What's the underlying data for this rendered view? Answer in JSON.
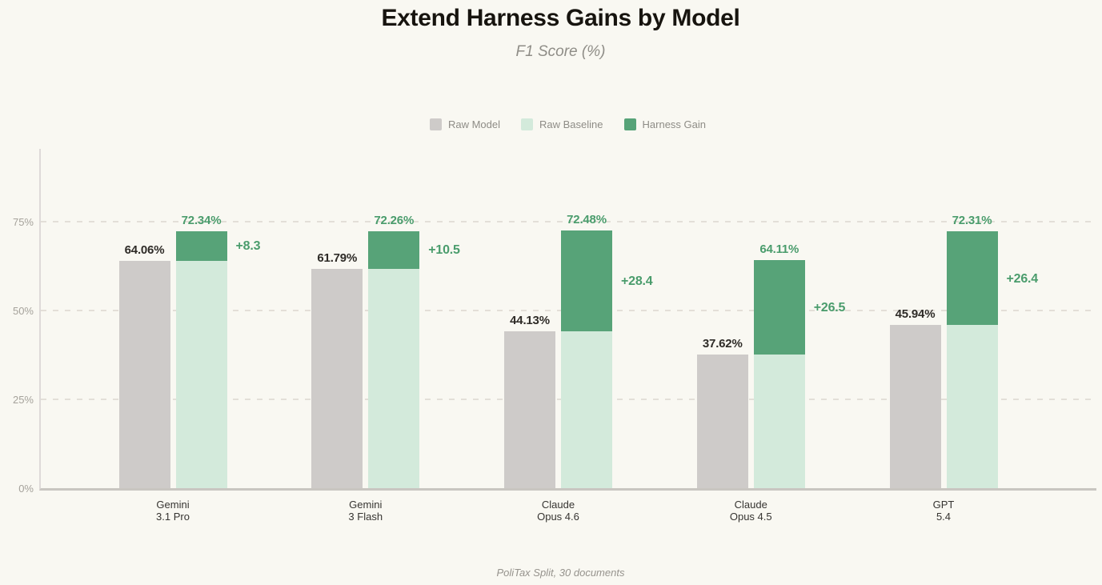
{
  "header": {
    "title": "Extend Harness Gains by Model",
    "subtitle": "F1 Score (%)"
  },
  "footer": {
    "caption": "PoliTax Split, 30 documents"
  },
  "colors": {
    "background": "#f9f8f2",
    "raw_model": "#cecbc9",
    "raw_baseline": "#d3eadb",
    "harness_gain": "#57a378",
    "gain_text": "#4a9c6c",
    "gridline": "#e3dfd8"
  },
  "chart_data": {
    "type": "bar",
    "title": "Extend Harness Gains by Model",
    "subtitle": "F1 Score (%)",
    "caption": "PoliTax Split, 30 documents",
    "ylim": [
      0,
      95.5
    ],
    "grid": "dashed horizontal",
    "legend_position": "top",
    "y_ticks": [
      {
        "value": 0,
        "label": "0%"
      },
      {
        "value": 25,
        "label": "25%"
      },
      {
        "value": 50,
        "label": "50%"
      },
      {
        "value": 75,
        "label": "75%"
      }
    ],
    "categories": [
      [
        "Gemini",
        "3.1 Pro"
      ],
      [
        "Gemini",
        "3 Flash"
      ],
      [
        "Claude",
        "Opus 4.6"
      ],
      [
        "Claude",
        "Opus 4.5"
      ],
      [
        "GPT",
        "5.4"
      ]
    ],
    "series": [
      {
        "name": "Raw Model",
        "color": "#cecbc9",
        "values": [
          64.06,
          61.79,
          44.13,
          37.62,
          45.94
        ]
      },
      {
        "name": "Raw Baseline",
        "color": "#d3eadb",
        "values": [
          64.06,
          61.79,
          44.13,
          37.62,
          45.94
        ]
      },
      {
        "name": "Harness Gain",
        "color": "#57a378",
        "values": [
          8.3,
          10.5,
          28.4,
          26.5,
          26.4
        ]
      }
    ],
    "totals": [
      72.34,
      72.26,
      72.48,
      64.11,
      72.31
    ],
    "bar_labels": {
      "raw": [
        "64.06%",
        "61.79%",
        "44.13%",
        "37.62%",
        "45.94%"
      ],
      "total": [
        "72.34%",
        "72.26%",
        "72.48%",
        "64.11%",
        "72.31%"
      ],
      "gain": [
        "+8.3",
        "+10.5",
        "+28.4",
        "+26.5",
        "+26.4"
      ]
    }
  }
}
